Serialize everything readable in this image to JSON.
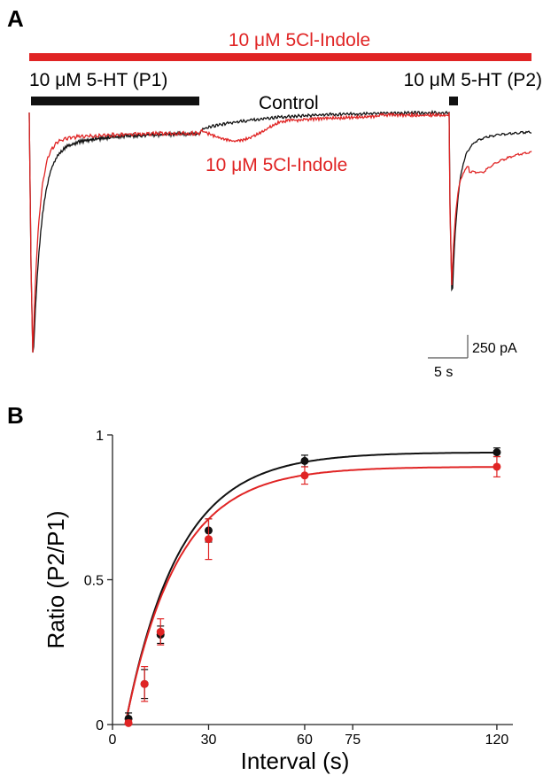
{
  "panel_a": {
    "label": "A",
    "drug_bar_label": "10 μM 5Cl-Indole",
    "p1_label": "10 μM 5-HT (P1)",
    "p2_label": "10 μM 5-HT (P2)",
    "control_label": "Control",
    "indole_label": "10 μM 5Cl-Indole",
    "scale_current": "250 pA",
    "scale_time": "5 s",
    "colors": {
      "control": "#111111",
      "indole": "#e02424",
      "drug_bar": "#e02424"
    }
  },
  "panel_b": {
    "label": "B"
  },
  "chart_data": {
    "type": "scatter",
    "xlabel": "Interval (s)",
    "ylabel": "Ratio (P2/P1)",
    "xlim": [
      0,
      125
    ],
    "ylim": [
      0,
      1
    ],
    "x_ticks": [
      0,
      30,
      60,
      75,
      120
    ],
    "x_tick_labels": [
      "0",
      "30",
      "60",
      "75",
      "120"
    ],
    "y_ticks": [
      0,
      0.5,
      1
    ],
    "y_tick_labels": [
      "0",
      "0.5",
      "1"
    ],
    "x": [
      5,
      10,
      15,
      30,
      60,
      120
    ],
    "series": [
      {
        "color": "#111111",
        "values": [
          0.02,
          0.14,
          0.31,
          0.67,
          0.91,
          0.94
        ],
        "errors": [
          0.02,
          0.05,
          0.03,
          0.04,
          0.02,
          0.015
        ],
        "fit": {
          "plateau": 0.94,
          "k": 0.0594,
          "delay": 4.0
        }
      },
      {
        "color": "#e02424",
        "values": [
          0.005,
          0.14,
          0.32,
          0.64,
          0.86,
          0.89
        ],
        "errors": [
          0.01,
          0.06,
          0.045,
          0.07,
          0.03,
          0.035
        ],
        "fit": {
          "plateau": 0.89,
          "k": 0.0614,
          "delay": 4.0
        }
      }
    ]
  }
}
